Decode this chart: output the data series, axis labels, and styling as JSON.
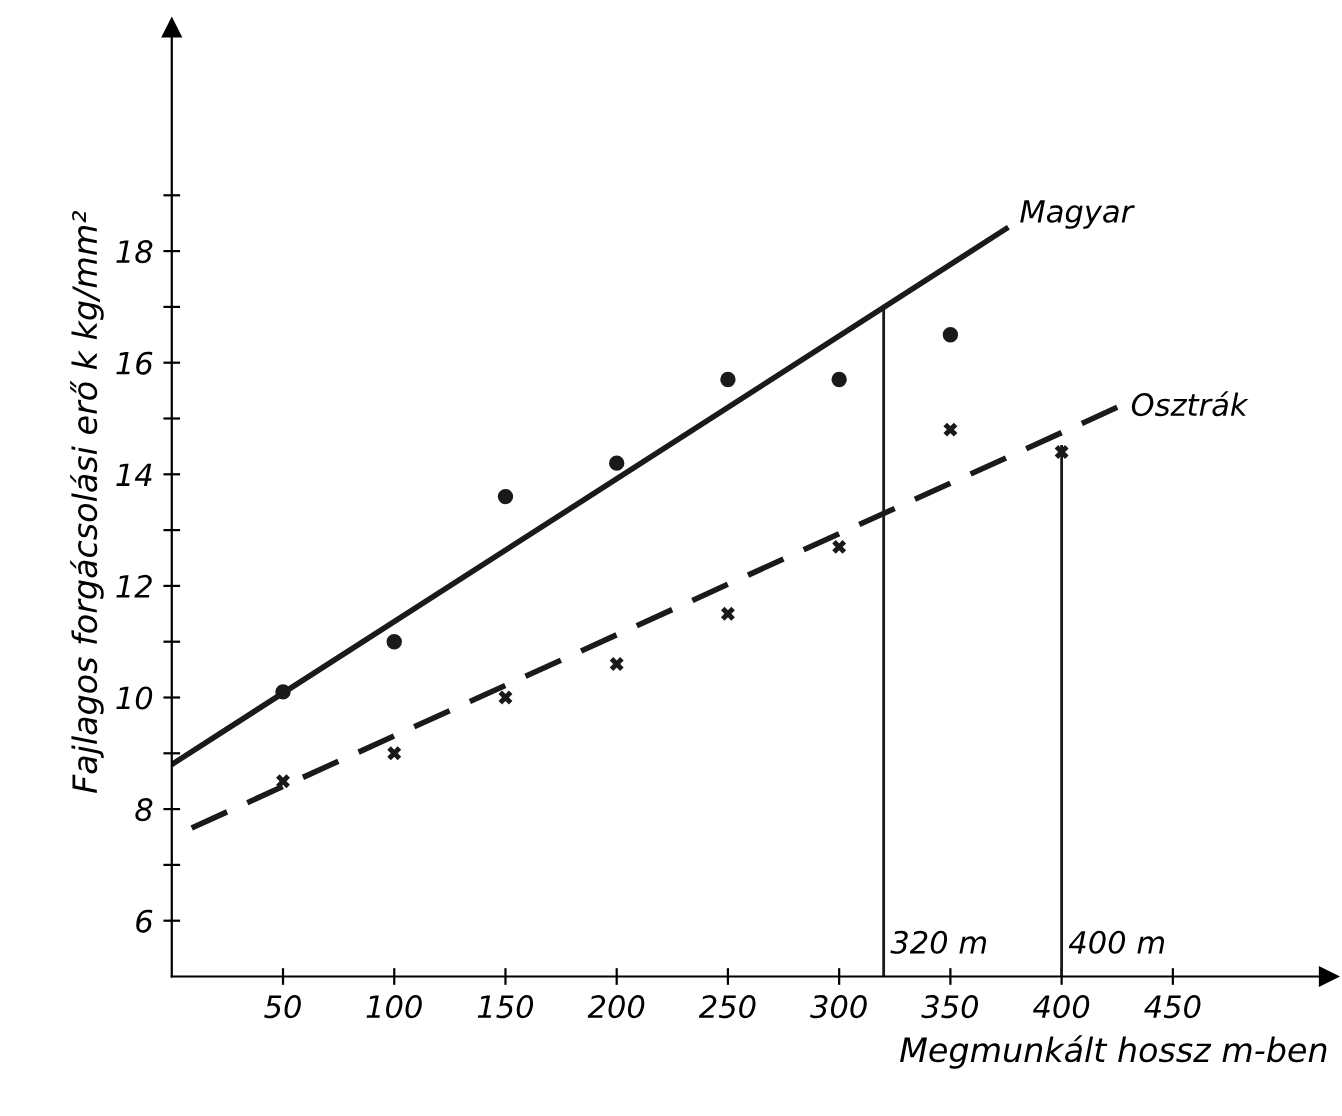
{
  "chart_data": {
    "type": "scatter",
    "xlabel": "Megmunkált hossz m-ben",
    "ylabel": "Fajlagos forgácsolási erő k kg/mm²",
    "xlim": [
      0,
      520
    ],
    "ylim": [
      5,
      22
    ],
    "xticks": [
      50,
      100,
      150,
      200,
      250,
      300,
      350,
      400,
      450
    ],
    "yticks": [
      6,
      {
        "value": 7,
        "label": null
      },
      8,
      {
        "value": 9,
        "label": null
      },
      10,
      {
        "value": 11,
        "label": null
      },
      12,
      {
        "value": 13,
        "label": null
      },
      14,
      {
        "value": 15,
        "label": null
      },
      16,
      {
        "value": 17,
        "label": null
      },
      18,
      {
        "value": 19,
        "label": null
      }
    ],
    "grid": false,
    "legend": false,
    "series": [
      {
        "marker": "circle",
        "color": "#1a1a1a",
        "x": [
          50,
          100,
          150,
          200,
          250,
          300,
          350
        ],
        "values": [
          10.1,
          11.0,
          13.6,
          14.2,
          15.7,
          15.7,
          16.5
        ]
      },
      {
        "type": "line",
        "name": "Magyar",
        "line_style": "solid",
        "color": "#1a1a1a",
        "x": [
          0,
          375
        ],
        "values": [
          8.8,
          18.4
        ]
      },
      {
        "marker": "cross",
        "color": "#1a1a1a",
        "x": [
          50,
          100,
          150,
          200,
          250,
          300,
          350,
          400
        ],
        "values": [
          8.5,
          9.0,
          10.0,
          10.6,
          11.5,
          12.7,
          14.8,
          14.4
        ]
      },
      {
        "type": "line",
        "name": "Osztrák",
        "line_style": "dashed",
        "color": "#1a1a1a",
        "x": [
          0,
          425
        ],
        "values": [
          7.5,
          15.2
        ]
      },
      {
        "type": "line",
        "line_style": "solid",
        "color": "#1a1a1a",
        "x": [
          320,
          320
        ],
        "values": [
          5,
          17.0
        ]
      },
      {
        "type": "line",
        "line_style": "solid",
        "color": "#1a1a1a",
        "x": [
          400,
          400
        ],
        "values": [
          5,
          14.5
        ]
      }
    ],
    "annotations": [
      {
        "text": "320 m",
        "x": 320,
        "y": 5
      },
      {
        "text": "400 m",
        "x": 400,
        "y": 5
      }
    ]
  }
}
